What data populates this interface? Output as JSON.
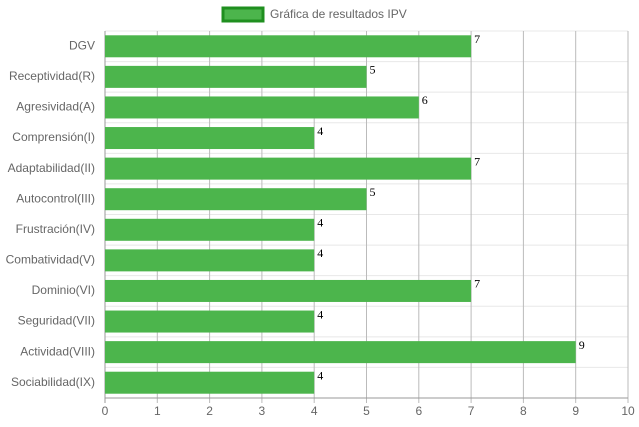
{
  "chart_data": {
    "type": "bar",
    "orientation": "horizontal",
    "categories": [
      "DGV",
      "Receptividad(R)",
      "Agresividad(A)",
      "Comprensión(I)",
      "Adaptabilidad(II)",
      "Autocontrol(III)",
      "Frustración(IV)",
      "Combatividad(V)",
      "Dominio(VI)",
      "Seguridad(VII)",
      "Actividad(VIII)",
      "Sociabilidad(IX)"
    ],
    "series": [
      {
        "name": "Gráfica de resultados IPV",
        "color": "#4cb54c",
        "border_color": "#1f8f1f",
        "values": [
          7,
          5,
          6,
          4,
          7,
          5,
          4,
          4,
          7,
          4,
          9,
          4
        ]
      }
    ],
    "xlim": [
      0,
      10
    ],
    "xticks": [
      0,
      1,
      2,
      3,
      4,
      5,
      6,
      7,
      8,
      9,
      10
    ],
    "grid": true,
    "legend": "top"
  }
}
